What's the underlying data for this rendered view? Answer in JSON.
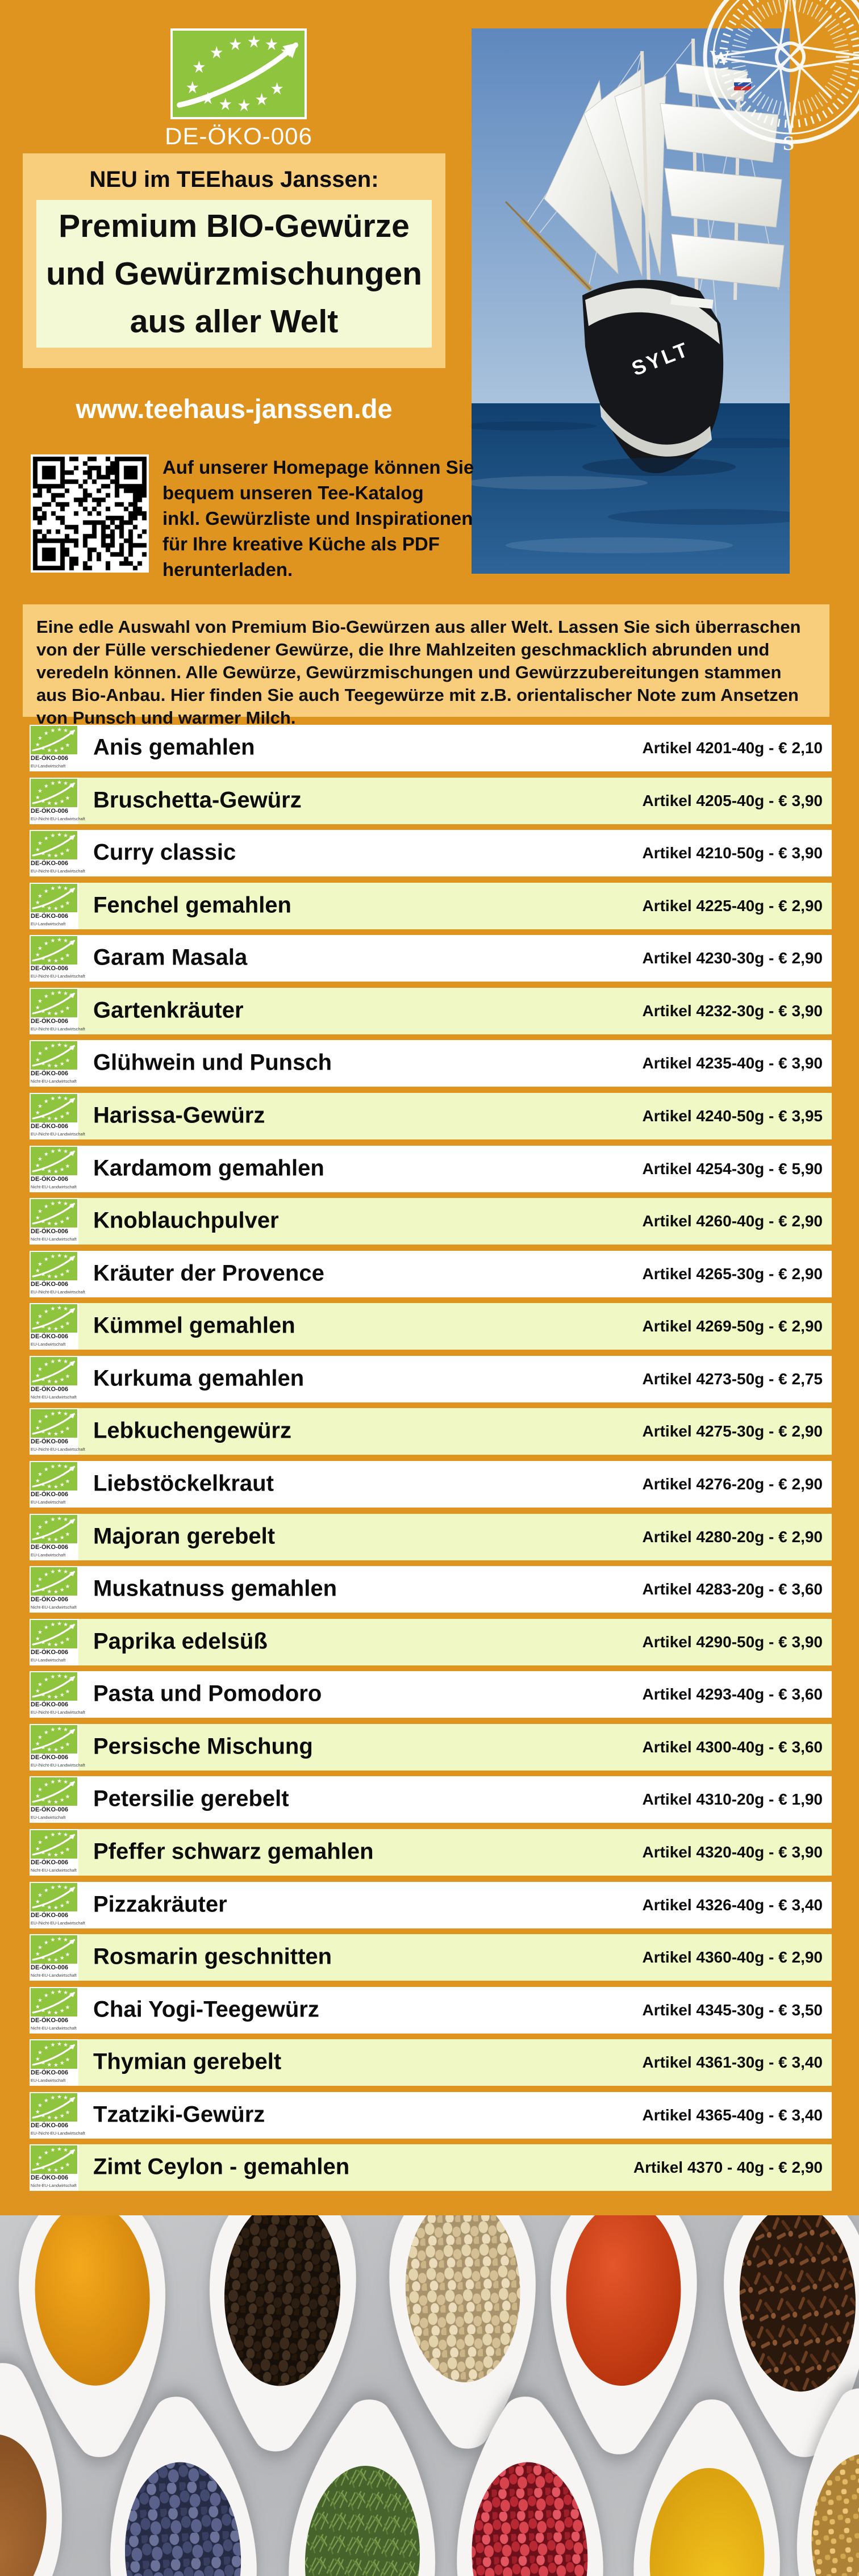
{
  "colors": {
    "page_bg": "#DE941E",
    "band": "#F8CE7D",
    "panel_light": "#F3F9D4",
    "row_green": "#F0F8C6",
    "row_white": "#FFFFFF",
    "logo_green": "#8FC43E",
    "website_text": "#FFFFFF",
    "text": "#0d0d0d"
  },
  "header": {
    "eu_organic_logo": {
      "code": "DE-ÖKO-006"
    },
    "compass": {
      "west": "W",
      "south": "S"
    },
    "ship": {
      "name": "SYLT"
    },
    "kicker": "NEU im TEEhaus Janssen:",
    "title_lines": [
      "Premium BIO-Gewürze",
      "und Gewürzmischungen",
      "aus aller Welt"
    ],
    "website": "www.teehaus-janssen.de",
    "qr_note_lines": [
      "Auf unserer Homepage können Sie",
      "bequem unseren Tee-Katalog",
      "inkl. Gewürzliste und Inspirationen",
      "für Ihre kreative Küche als PDF",
      "herunterladen."
    ]
  },
  "intro_lines": [
    "Eine edle Auswahl von Premium Bio-Gewürzen aus aller Welt. Lassen Sie sich überraschen",
    "von der Fülle verschiedener Gewürze, die Ihre Mahlzeiten geschmacklich abrunden und",
    "veredeln können. Alle Gewürze, Gewürzmischungen und Gewürzzubereitungen stammen",
    "aus Bio-Anbau. Hier finden Sie auch Teegewürze mit z.B. orientalischer Note zum Ansetzen",
    "von Punsch und warmer Milch."
  ],
  "products": {
    "badge_code": "DE-ÖKO-006",
    "items": [
      {
        "name": "Anis gemahlen",
        "article": "Artikel 4201-40g - € 2,10",
        "origin": "EU-Landwirtschaft"
      },
      {
        "name": "Bruschetta-Gewürz",
        "article": "Artikel 4205-40g - € 3,90",
        "origin": "EU-/Nicht-EU-Landwirtschaft"
      },
      {
        "name": "Curry classic",
        "article": "Artikel 4210-50g - € 3,90",
        "origin": "EU-/Nicht-EU-Landwirtschaft"
      },
      {
        "name": "Fenchel gemahlen",
        "article": "Artikel 4225-40g - € 2,90",
        "origin": "EU-Landwirtschaft"
      },
      {
        "name": "Garam Masala",
        "article": "Artikel 4230-30g - € 2,90",
        "origin": "EU-/Nicht-EU-Landwirtschaft"
      },
      {
        "name": "Gartenkräuter",
        "article": "Artikel 4232-30g - € 3,90",
        "origin": "EU-/Nicht-EU-Landwirtschaft"
      },
      {
        "name": "Glühwein und Punsch",
        "article": "Artikel 4235-40g - € 3,90",
        "origin": "Nicht-EU-Landwirtschaft"
      },
      {
        "name": "Harissa-Gewürz",
        "article": "Artikel 4240-50g - € 3,95",
        "origin": "EU-/Nicht-EU-Landwirtschaft"
      },
      {
        "name": "Kardamom gemahlen",
        "article": "Artikel 4254-30g - € 5,90",
        "origin": "Nicht-EU-Landwirtschaft"
      },
      {
        "name": "Knoblauchpulver",
        "article": "Artikel 4260-40g - € 2,90",
        "origin": "Nicht-EU-Landwirtschaft"
      },
      {
        "name": "Kräuter der Provence",
        "article": "Artikel 4265-30g - € 2,90",
        "origin": "EU-/Nicht-EU-Landwirtschaft"
      },
      {
        "name": "Kümmel gemahlen",
        "article": "Artikel 4269-50g - € 2,90",
        "origin": "EU-Landwirtschaft"
      },
      {
        "name": "Kurkuma gemahlen",
        "article": "Artikel 4273-50g - € 2,75",
        "origin": "Nicht-EU-Landwirtschaft"
      },
      {
        "name": "Lebkuchengewürz",
        "article": "Artikel 4275-30g - € 2,90",
        "origin": "EU-/Nicht-EU-Landwirtschaft"
      },
      {
        "name": "Liebstöckelkraut",
        "article": "Artikel 4276-20g - € 2,90",
        "origin": "EU-Landwirtschaft"
      },
      {
        "name": "Majoran gerebelt",
        "article": "Artikel 4280-20g - € 2,90",
        "origin": "EU-Landwirtschaft"
      },
      {
        "name": "Muskatnuss gemahlen",
        "article": "Artikel 4283-20g - € 3,60",
        "origin": "Nicht-EU-Landwirtschaft"
      },
      {
        "name": "Paprika edelsüß",
        "article": "Artikel 4290-50g - € 3,90",
        "origin": "EU-Landwirtschaft"
      },
      {
        "name": "Pasta und Pomodoro",
        "article": "Artikel 4293-40g - € 3,60",
        "origin": "EU-/Nicht-EU-Landwirtschaft"
      },
      {
        "name": "Persische Mischung",
        "article": "Artikel 4300-40g - € 3,60",
        "origin": "EU-/Nicht-EU-Landwirtschaft"
      },
      {
        "name": "Petersilie gerebelt",
        "article": "Artikel 4310-20g - € 1,90",
        "origin": "EU-Landwirtschaft"
      },
      {
        "name": "Pfeffer schwarz gemahlen",
        "article": "Artikel 4320-40g - € 3,90",
        "origin": "Nicht-EU-Landwirtschaft"
      },
      {
        "name": "Pizzakräuter",
        "article": "Artikel 4326-40g - € 3,40",
        "origin": "EU-/Nicht-EU-Landwirtschaft"
      },
      {
        "name": "Rosmarin geschnitten",
        "article": "Artikel 4360-40g - € 2,90",
        "origin": "Nicht-EU-Landwirtschaft"
      },
      {
        "name": "Chai Yogi-Teegewürz",
        "article": "Artikel 4345-30g - € 3,50",
        "origin": "Nicht-EU-Landwirtschaft"
      },
      {
        "name": "Thymian gerebelt",
        "article": "Artikel 4361-30g - € 3,40",
        "origin": "EU-Landwirtschaft"
      },
      {
        "name": "Tzatziki-Gewürz",
        "article": "Artikel 4365-40g - € 3,40",
        "origin": "EU-/Nicht-EU-Landwirtschaft"
      },
      {
        "name": "Zimt Ceylon - gemahlen",
        "article": "Artikel 4370 - 40g - € 2,90",
        "origin": "Nicht-EU-Landwirtschaft"
      }
    ]
  },
  "footer_photo": {
    "spices": [
      "turmeric powder",
      "black peppercorns",
      "white peppercorns",
      "paprika powder",
      "cloves",
      "cinnamon powder",
      "juniper berries",
      "dried dill",
      "pink peppercorns",
      "curry powder",
      "fenugreek seeds"
    ]
  }
}
